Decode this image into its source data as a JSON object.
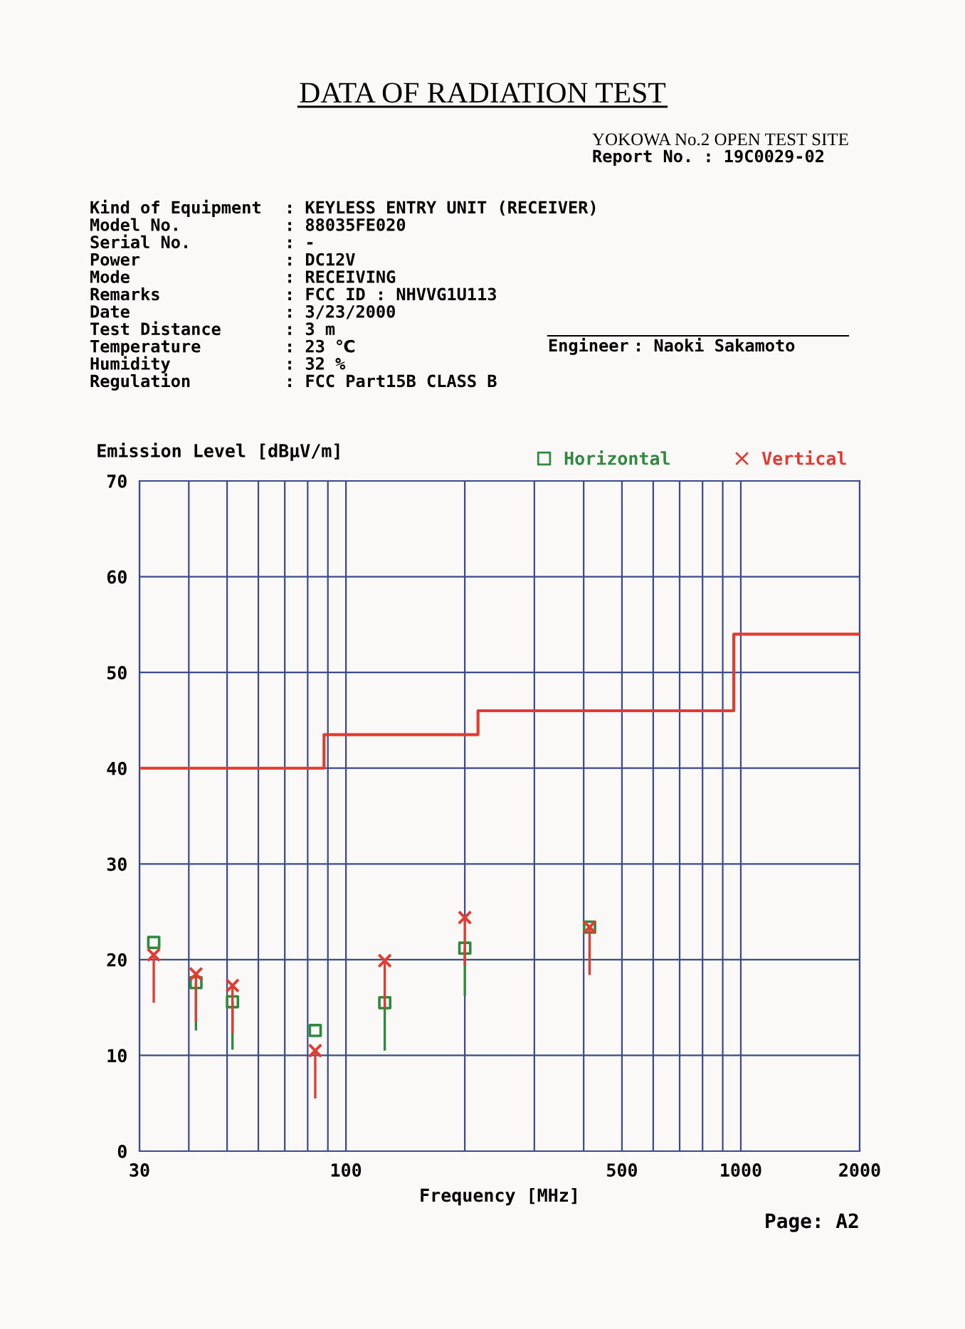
{
  "chart_data": {
    "type": "scatter",
    "title": "DATA OF RADIATION TEST",
    "xlabel": "Frequency [MHz]",
    "ylabel": "Emission Level [dBμV/m]",
    "log": "x",
    "xlim": [
      30,
      2000
    ],
    "ylim": [
      0,
      70
    ],
    "xticks": [
      30,
      {
        "value": 40,
        "label": null
      },
      {
        "value": 50,
        "label": null
      },
      {
        "value": 60,
        "label": null
      },
      {
        "value": 70,
        "label": null
      },
      {
        "value": 80,
        "label": null
      },
      {
        "value": 90,
        "label": null
      },
      100,
      {
        "value": 200,
        "label": null
      },
      {
        "value": 300,
        "label": null
      },
      {
        "value": 400,
        "label": null
      },
      500,
      {
        "value": 600,
        "label": null
      },
      {
        "value": 700,
        "label": null
      },
      {
        "value": 800,
        "label": null
      },
      {
        "value": 900,
        "label": null
      },
      1000,
      2000
    ],
    "yticks": [
      0,
      10,
      20,
      30,
      40,
      50,
      60,
      70
    ],
    "grid": true,
    "legend": "top right",
    "series": [
      {
        "type": "step",
        "color": "#e03c31",
        "marker": "none",
        "line_style": "solid",
        "x": [
          30,
          88,
          216,
          960,
          2000
        ],
        "values": [
          40,
          43.5,
          46,
          54,
          54
        ]
      },
      {
        "name": "Horizontal",
        "color": "#2e8b3e",
        "marker": "square",
        "x": [
          32.6,
          41.7,
          51.6,
          83.6,
          125.4,
          200,
          414
        ],
        "values": [
          21.8,
          17.6,
          15.6,
          12.6,
          15.5,
          21.2,
          23.4
        ],
        "errors": [
          null,
          [
            12.6,
            17.6
          ],
          [
            10.6,
            15.6
          ],
          null,
          [
            10.5,
            15.5
          ],
          [
            16.2,
            21.2
          ],
          null
        ]
      },
      {
        "name": "Vertical",
        "color": "#e03c31",
        "marker": "cross",
        "x": [
          32.6,
          41.7,
          51.6,
          83.6,
          125.4,
          200,
          414
        ],
        "values": [
          20.5,
          18.5,
          17.3,
          10.5,
          19.9,
          24.4,
          23.4
        ],
        "errors": [
          [
            15.5,
            20.5
          ],
          [
            13.5,
            18.5
          ],
          [
            12.3,
            17.3
          ],
          [
            5.5,
            10.5
          ],
          [
            14.9,
            19.9
          ],
          [
            19.4,
            24.4
          ],
          [
            18.4,
            23.4
          ]
        ]
      }
    ],
    "annotations": [
      "YOKOWA No.2 OPEN TEST SITE",
      "Report No. : 19C0029-02",
      "Kind of Equipment : KEYLESS ENTRY UNIT (RECEIVER)",
      "Model No. : 88035FE020",
      "Serial No. : -",
      "Power : DC12V",
      "Mode : RECEIVING",
      "Remarks : FCC ID : NHVVG1U113",
      "Date : 3/23/2000",
      "Test Distance : 3 m",
      "Temperature : 23 ℃",
      "Humidity : 32 %",
      "Regulation : FCC Part15B CLASS B",
      "Engineer : Naoki Sakamoto",
      "Page: A2"
    ]
  }
}
